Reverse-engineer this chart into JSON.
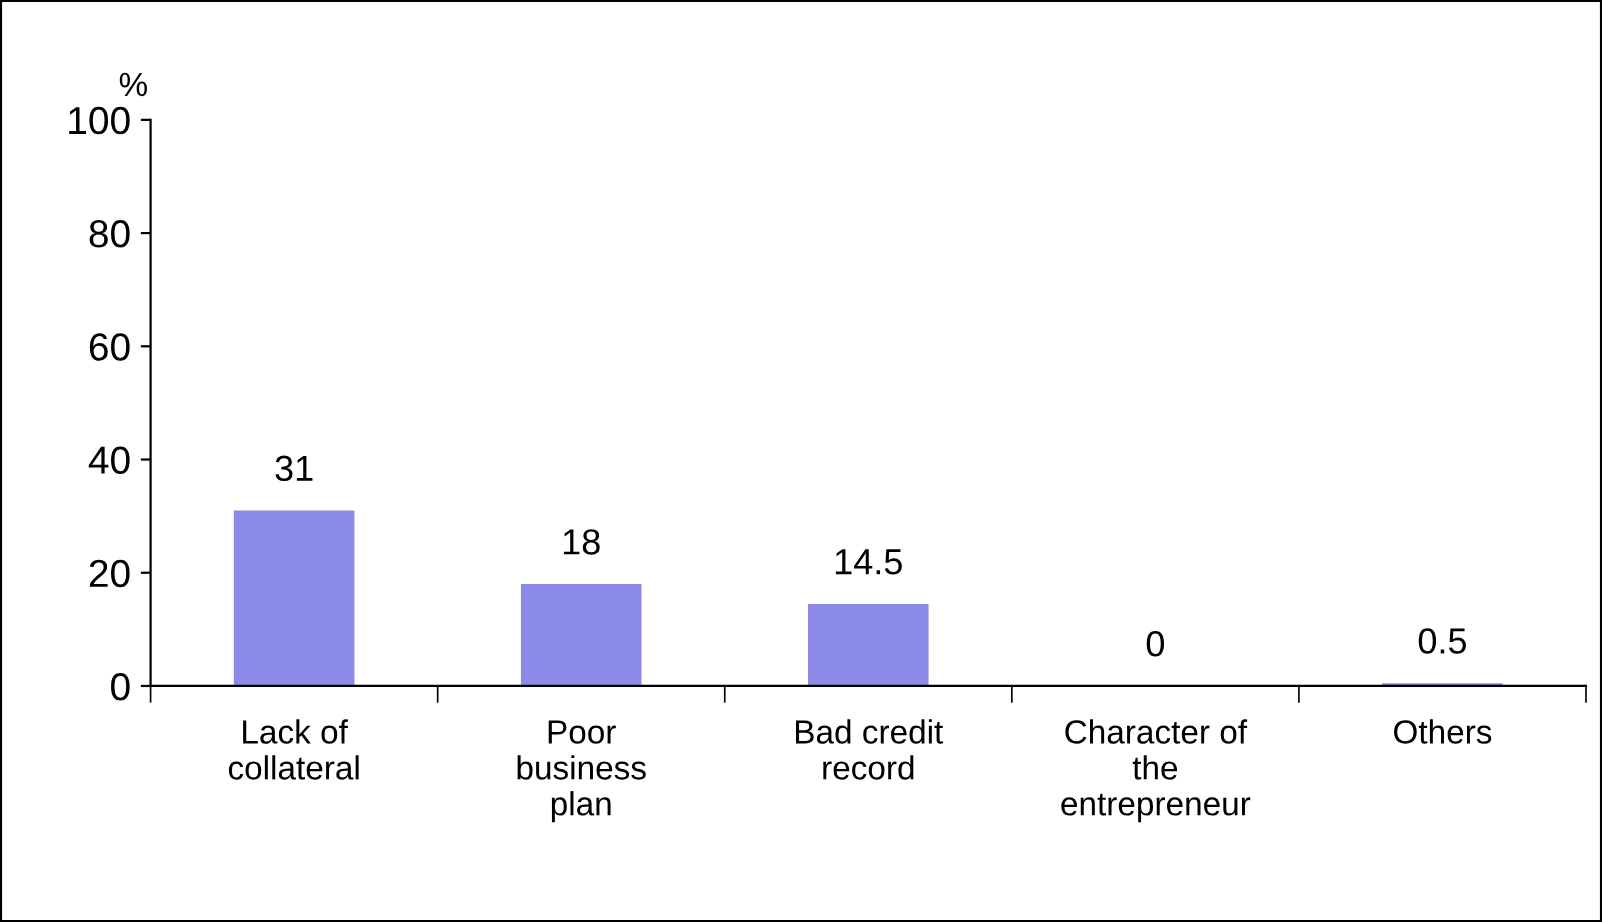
{
  "chart_data": {
    "type": "bar",
    "ylabel": "%",
    "categories": [
      "Lack of\ncollateral",
      "Poor\nbusiness\nplan",
      "Bad credit\nrecord",
      "Character of\nthe\nentrepreneur",
      "Others"
    ],
    "values": [
      31,
      18,
      14.5,
      0,
      0.5
    ],
    "color": "#8c8ce8",
    "ylim": [
      0,
      100
    ],
    "yticks": [
      0,
      20,
      40,
      60,
      80,
      100
    ],
    "data_labels": true,
    "grid": false,
    "legend": false
  }
}
